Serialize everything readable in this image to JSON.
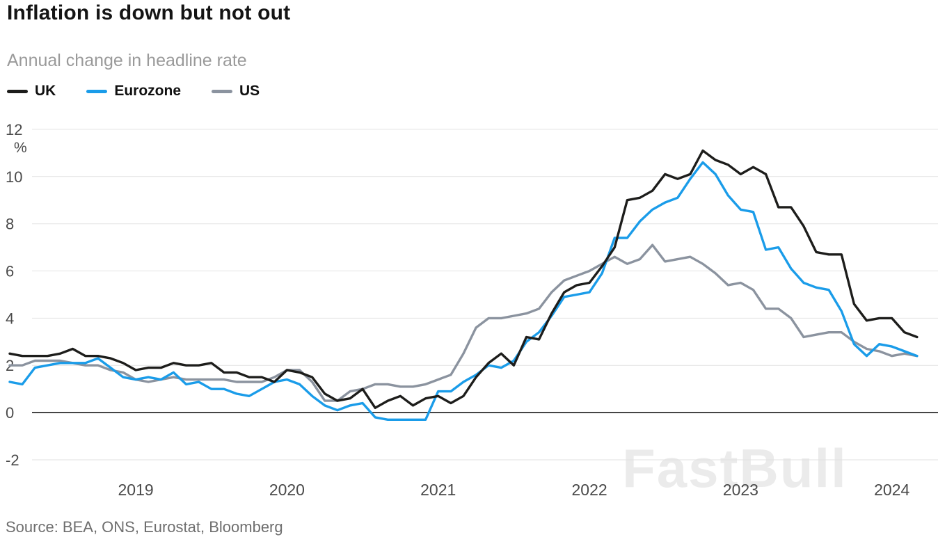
{
  "title": "Inflation is down but not out",
  "subtitle": "Annual change in headline rate",
  "source": "Source: BEA, ONS, Eurostat, Bloomberg",
  "watermark": "FastBull",
  "chart_data": {
    "type": "line",
    "title": "Inflation is down but not out",
    "subtitle": "Annual change in headline rate",
    "unit_label": "%",
    "ylim": [
      -2,
      12
    ],
    "yticks": [
      12,
      10,
      8,
      6,
      4,
      2,
      0,
      -2
    ],
    "grid": "horizontal",
    "legend_position": "top-left",
    "x_start": "2018-03",
    "x_end": "2024-03",
    "x_frequency": "monthly",
    "x_tick_years": [
      "2019",
      "2020",
      "2021",
      "2022",
      "2023",
      "2024"
    ],
    "series": [
      {
        "name": "UK",
        "color": "#1d1d1b",
        "values": [
          2.5,
          2.4,
          2.4,
          2.4,
          2.5,
          2.7,
          2.4,
          2.4,
          2.3,
          2.1,
          1.8,
          1.9,
          1.9,
          2.1,
          2.0,
          2.0,
          2.1,
          1.7,
          1.7,
          1.5,
          1.5,
          1.3,
          1.8,
          1.7,
          1.5,
          0.8,
          0.5,
          0.6,
          1.0,
          0.2,
          0.5,
          0.7,
          0.3,
          0.6,
          0.7,
          0.4,
          0.7,
          1.5,
          2.1,
          2.5,
          2.0,
          3.2,
          3.1,
          4.2,
          5.1,
          5.4,
          5.5,
          6.2,
          7.0,
          9.0,
          9.1,
          9.4,
          10.1,
          9.9,
          10.1,
          11.1,
          10.7,
          10.5,
          10.1,
          10.4,
          10.1,
          8.7,
          8.7,
          7.9,
          6.8,
          6.7,
          6.7,
          4.6,
          3.9,
          4.0,
          4.0,
          3.4,
          3.2
        ]
      },
      {
        "name": "Eurozone",
        "color": "#1a9ce9",
        "values": [
          1.3,
          1.2,
          1.9,
          2.0,
          2.1,
          2.1,
          2.1,
          2.3,
          1.9,
          1.5,
          1.4,
          1.5,
          1.4,
          1.7,
          1.2,
          1.3,
          1.0,
          1.0,
          0.8,
          0.7,
          1.0,
          1.3,
          1.4,
          1.2,
          0.7,
          0.3,
          0.1,
          0.3,
          0.4,
          -0.2,
          -0.3,
          -0.3,
          -0.3,
          -0.3,
          0.9,
          0.9,
          1.3,
          1.6,
          2.0,
          1.9,
          2.2,
          3.0,
          3.4,
          4.1,
          4.9,
          5.0,
          5.1,
          5.9,
          7.4,
          7.4,
          8.1,
          8.6,
          8.9,
          9.1,
          9.9,
          10.6,
          10.1,
          9.2,
          8.6,
          8.5,
          6.9,
          7.0,
          6.1,
          5.5,
          5.3,
          5.2,
          4.3,
          2.9,
          2.4,
          2.9,
          2.8,
          2.6,
          2.4
        ]
      },
      {
        "name": "US",
        "color": "#8b939f",
        "values": [
          2.0,
          2.0,
          2.2,
          2.2,
          2.2,
          2.1,
          2.0,
          2.0,
          1.8,
          1.7,
          1.4,
          1.3,
          1.4,
          1.5,
          1.4,
          1.4,
          1.4,
          1.4,
          1.3,
          1.3,
          1.3,
          1.5,
          1.8,
          1.8,
          1.3,
          0.5,
          0.5,
          0.9,
          1.0,
          1.2,
          1.2,
          1.1,
          1.1,
          1.2,
          1.4,
          1.6,
          2.5,
          3.6,
          4.0,
          4.0,
          4.1,
          4.2,
          4.4,
          5.1,
          5.6,
          5.8,
          6.0,
          6.3,
          6.6,
          6.3,
          6.5,
          7.1,
          6.4,
          6.5,
          6.6,
          6.3,
          5.9,
          5.4,
          5.5,
          5.2,
          4.4,
          4.4,
          4.0,
          3.2,
          3.3,
          3.4,
          3.4,
          3.0,
          2.7,
          2.6,
          2.4,
          2.5,
          2.4
        ]
      }
    ]
  }
}
